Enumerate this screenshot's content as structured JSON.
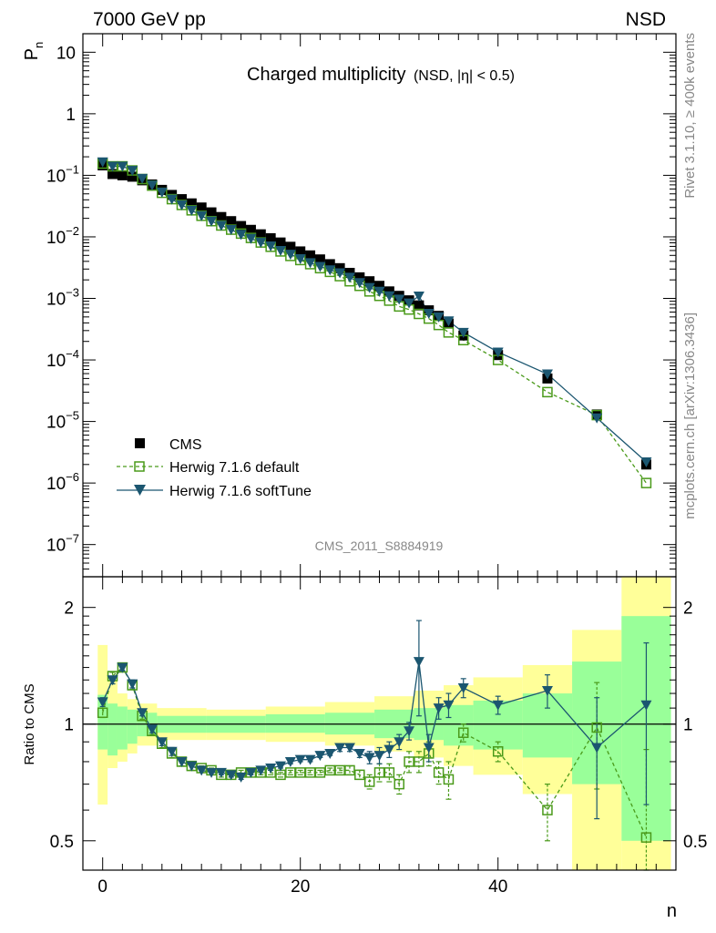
{
  "header": {
    "left": "7000 GeV pp",
    "right": "NSD"
  },
  "plot_title": {
    "main": "Charged multiplicity",
    "sub": "(NSD, |η| < 0.5)"
  },
  "analysis_label": "CMS_2011_S8884919",
  "side_labels": {
    "rivet": "Rivet 3.1.10, ≥ 400k events",
    "mcplots": "mcplots.cern.ch [arXiv:1306.3436]"
  },
  "colors": {
    "cms": "#000000",
    "default": "#4a9a1a",
    "softtune": "#1b5670",
    "band_yellow": "#ffff99",
    "band_green": "#99ff99"
  },
  "chart_data": [
    {
      "type": "scatter",
      "title": "Charged multiplicity",
      "ylabel": "P",
      "ylabel_sub": "n",
      "xlabel": "",
      "ylog": true,
      "ylim": [
        3e-08,
        20
      ],
      "xlim": [
        -2,
        58
      ],
      "yticks": [
        {
          "v": 10,
          "label": "10",
          "exp": ""
        },
        {
          "v": 1,
          "label": "1",
          "exp": ""
        },
        {
          "v": 0.1,
          "label": "10",
          "exp": "−1"
        },
        {
          "v": 0.01,
          "label": "10",
          "exp": "−2"
        },
        {
          "v": 0.001,
          "label": "10",
          "exp": "−3"
        },
        {
          "v": 0.0001,
          "label": "10",
          "exp": "−4"
        },
        {
          "v": 1e-05,
          "label": "10",
          "exp": "−5"
        },
        {
          "v": 1e-06,
          "label": "10",
          "exp": "−6"
        },
        {
          "v": 1e-07,
          "label": "10",
          "exp": "−7"
        }
      ],
      "legend": {
        "position": "bottom-left",
        "entries": [
          "CMS",
          "Herwig 7.1.6 default",
          "Herwig 7.1.6 softTune"
        ]
      },
      "series": [
        {
          "name": "CMS",
          "x": [
            0,
            1,
            2,
            3,
            4,
            5,
            6,
            7,
            8,
            9,
            10,
            11,
            12,
            13,
            14,
            15,
            16,
            17,
            18,
            19,
            20,
            21,
            22,
            23,
            24,
            25,
            26,
            27,
            28,
            29,
            30,
            31,
            32,
            33,
            34,
            35,
            36.5,
            40,
            45,
            50,
            55
          ],
          "y": [
            0.145,
            0.105,
            0.1,
            0.095,
            0.083,
            0.071,
            0.058,
            0.048,
            0.041,
            0.035,
            0.03,
            0.025,
            0.021,
            0.018,
            0.015,
            0.013,
            0.011,
            0.0095,
            0.0081,
            0.0069,
            0.0058,
            0.005,
            0.0043,
            0.0036,
            0.0031,
            0.0026,
            0.0022,
            0.0019,
            0.0016,
            0.0013,
            0.0011,
            0.00093,
            0.00077,
            0.00064,
            0.00052,
            0.00039,
            0.00025,
            0.00012,
            5e-05,
            1.3e-05,
            2e-06
          ]
        },
        {
          "name": "Herwig 7.1.6 default",
          "x": [
            0,
            1,
            2,
            3,
            4,
            5,
            6,
            7,
            8,
            9,
            10,
            11,
            12,
            13,
            14,
            15,
            16,
            17,
            18,
            19,
            20,
            21,
            22,
            23,
            24,
            25,
            26,
            27,
            28,
            29,
            30,
            31,
            32,
            33,
            34,
            35,
            36.5,
            40,
            45,
            50,
            55
          ],
          "y": [
            0.155,
            0.14,
            0.14,
            0.12,
            0.087,
            0.068,
            0.052,
            0.041,
            0.033,
            0.027,
            0.022,
            0.018,
            0.0153,
            0.0131,
            0.0113,
            0.0096,
            0.0081,
            0.0069,
            0.0058,
            0.0049,
            0.0042,
            0.0036,
            0.0031,
            0.0027,
            0.0023,
            0.0019,
            0.0016,
            0.0013,
            0.0011,
            0.00092,
            0.00074,
            0.00066,
            0.00056,
            0.00047,
            0.00037,
            0.00028,
            0.00021,
            0.0001,
            3e-05,
            1.27e-05,
            1e-06
          ]
        },
        {
          "name": "Herwig 7.1.6 softTune",
          "x": [
            0,
            1,
            2,
            3,
            4,
            5,
            6,
            7,
            8,
            9,
            10,
            11,
            12,
            13,
            14,
            15,
            16,
            17,
            18,
            19,
            20,
            21,
            22,
            23,
            24,
            25,
            26,
            27,
            28,
            29,
            30,
            31,
            32,
            33,
            34,
            35,
            36.5,
            40,
            45,
            50,
            55
          ],
          "y": [
            0.165,
            0.14,
            0.14,
            0.12,
            0.089,
            0.069,
            0.053,
            0.041,
            0.033,
            0.027,
            0.022,
            0.018,
            0.0153,
            0.0131,
            0.0109,
            0.0094,
            0.0081,
            0.0071,
            0.006,
            0.0052,
            0.0044,
            0.0038,
            0.0033,
            0.0029,
            0.0026,
            0.0022,
            0.0018,
            0.0015,
            0.0013,
            0.0011,
            0.00097,
            0.00084,
            0.00109,
            0.00057,
            0.0005,
            0.00043,
            0.00028,
            0.000134,
            5.9e-05,
            1.14e-05,
            2.2e-06
          ]
        }
      ]
    },
    {
      "type": "scatter",
      "title": "",
      "ylabel": "Ratio to CMS",
      "xlabel": "n",
      "ylog": true,
      "ylim": [
        0.42,
        2.4
      ],
      "xlim": [
        -2,
        58
      ],
      "yticks": [
        0.5,
        1,
        2
      ],
      "xticks": [
        0,
        20,
        40
      ],
      "reference_line": 1,
      "bands": [
        {
          "x0": -0.5,
          "x1": 0.5,
          "y_in": [
            0.86,
            1.19
          ],
          "y_out": [
            0.62,
            1.6
          ]
        },
        {
          "x0": 0.5,
          "x1": 1.5,
          "y_in": [
            0.83,
            1.13
          ],
          "y_out": [
            0.77,
            1.3
          ]
        },
        {
          "x0": 1.5,
          "x1": 2.5,
          "y_in": [
            0.86,
            1.11
          ],
          "y_out": [
            0.8,
            1.2
          ]
        },
        {
          "x0": 2.5,
          "x1": 3.5,
          "y_in": [
            0.89,
            1.09
          ],
          "y_out": [
            0.84,
            1.16
          ]
        },
        {
          "x0": 3.5,
          "x1": 5.5,
          "y_in": [
            0.93,
            1.07
          ],
          "y_out": [
            0.88,
            1.13
          ]
        },
        {
          "x0": 5.5,
          "x1": 10.5,
          "y_in": [
            0.95,
            1.05
          ],
          "y_out": [
            0.91,
            1.1
          ]
        },
        {
          "x0": 10.5,
          "x1": 16.5,
          "y_in": [
            0.95,
            1.05
          ],
          "y_out": [
            0.91,
            1.09
          ]
        },
        {
          "x0": 16.5,
          "x1": 22.5,
          "y_in": [
            0.95,
            1.06
          ],
          "y_out": [
            0.9,
            1.11
          ]
        },
        {
          "x0": 22.5,
          "x1": 27.5,
          "y_in": [
            0.94,
            1.07
          ],
          "y_out": [
            0.88,
            1.14
          ]
        },
        {
          "x0": 27.5,
          "x1": 31.5,
          "y_in": [
            0.92,
            1.09
          ],
          "y_out": [
            0.85,
            1.18
          ]
        },
        {
          "x0": 31.5,
          "x1": 34.5,
          "y_in": [
            0.91,
            1.1
          ],
          "y_out": [
            0.82,
            1.22
          ]
        },
        {
          "x0": 34.5,
          "x1": 37.5,
          "y_in": [
            0.88,
            1.12
          ],
          "y_out": [
            0.78,
            1.26
          ]
        },
        {
          "x0": 37.5,
          "x1": 42.5,
          "y_in": [
            0.86,
            1.15
          ],
          "y_out": [
            0.74,
            1.32
          ]
        },
        {
          "x0": 42.5,
          "x1": 47.5,
          "y_in": [
            0.82,
            1.2
          ],
          "y_out": [
            0.66,
            1.42
          ]
        },
        {
          "x0": 47.5,
          "x1": 52.5,
          "y_in": [
            0.7,
            1.45
          ],
          "y_out": [
            0.3,
            1.75
          ]
        },
        {
          "x0": 52.5,
          "x1": 57.5,
          "y_in": [
            0.5,
            1.9
          ],
          "y_out": [
            0.3,
            3.0
          ]
        }
      ],
      "series": [
        {
          "name": "Herwig 7.1.6 default",
          "x": [
            0,
            1,
            2,
            3,
            4,
            5,
            6,
            7,
            8,
            9,
            10,
            11,
            12,
            13,
            14,
            15,
            16,
            17,
            18,
            19,
            20,
            21,
            22,
            23,
            24,
            25,
            26,
            27,
            28,
            29,
            30,
            31,
            32,
            33,
            34,
            35,
            36.5,
            40,
            45,
            50,
            55
          ],
          "y": [
            1.07,
            1.33,
            1.4,
            1.26,
            1.05,
            0.96,
            0.89,
            0.84,
            0.8,
            0.78,
            0.77,
            0.76,
            0.74,
            0.74,
            0.75,
            0.75,
            0.75,
            0.75,
            0.74,
            0.75,
            0.75,
            0.75,
            0.75,
            0.76,
            0.76,
            0.76,
            0.74,
            0.71,
            0.75,
            0.75,
            0.7,
            0.8,
            0.8,
            0.84,
            0.75,
            0.72,
            0.95,
            0.85,
            0.6,
            0.98,
            0.51
          ],
          "err": [
            0.03,
            0.03,
            0.03,
            0.03,
            0.02,
            0.02,
            0.02,
            0.02,
            0.02,
            0.02,
            0.01,
            0.01,
            0.01,
            0.01,
            0.01,
            0.01,
            0.01,
            0.01,
            0.01,
            0.01,
            0.01,
            0.01,
            0.01,
            0.01,
            0.01,
            0.02,
            0.02,
            0.03,
            0.04,
            0.04,
            0.04,
            0.05,
            0.05,
            0.06,
            0.05,
            0.08,
            0.05,
            0.05,
            0.1,
            0.3,
            0.35
          ]
        },
        {
          "name": "Herwig 7.1.6 softTune",
          "x": [
            0,
            1,
            2,
            3,
            4,
            5,
            6,
            7,
            8,
            9,
            10,
            11,
            12,
            13,
            14,
            15,
            16,
            17,
            18,
            19,
            20,
            21,
            22,
            23,
            24,
            25,
            26,
            27,
            28,
            29,
            30,
            31,
            32,
            33,
            34,
            35,
            36.5,
            40,
            45,
            50,
            55
          ],
          "y": [
            1.14,
            1.3,
            1.4,
            1.27,
            1.07,
            0.97,
            0.9,
            0.85,
            0.8,
            0.78,
            0.76,
            0.75,
            0.75,
            0.74,
            0.73,
            0.75,
            0.76,
            0.77,
            0.78,
            0.8,
            0.81,
            0.81,
            0.83,
            0.84,
            0.87,
            0.87,
            0.84,
            0.82,
            0.83,
            0.86,
            0.9,
            0.96,
            1.45,
            0.87,
            1.1,
            1.12,
            1.24,
            1.12,
            1.22,
            0.87,
            1.12
          ],
          "err": [
            0.03,
            0.03,
            0.03,
            0.03,
            0.02,
            0.02,
            0.02,
            0.02,
            0.02,
            0.02,
            0.01,
            0.01,
            0.01,
            0.01,
            0.01,
            0.01,
            0.01,
            0.01,
            0.01,
            0.01,
            0.01,
            0.01,
            0.01,
            0.01,
            0.02,
            0.02,
            0.02,
            0.03,
            0.04,
            0.04,
            0.04,
            0.05,
            0.4,
            0.07,
            0.07,
            0.08,
            0.07,
            0.06,
            0.12,
            0.3,
            0.5
          ]
        }
      ]
    }
  ]
}
